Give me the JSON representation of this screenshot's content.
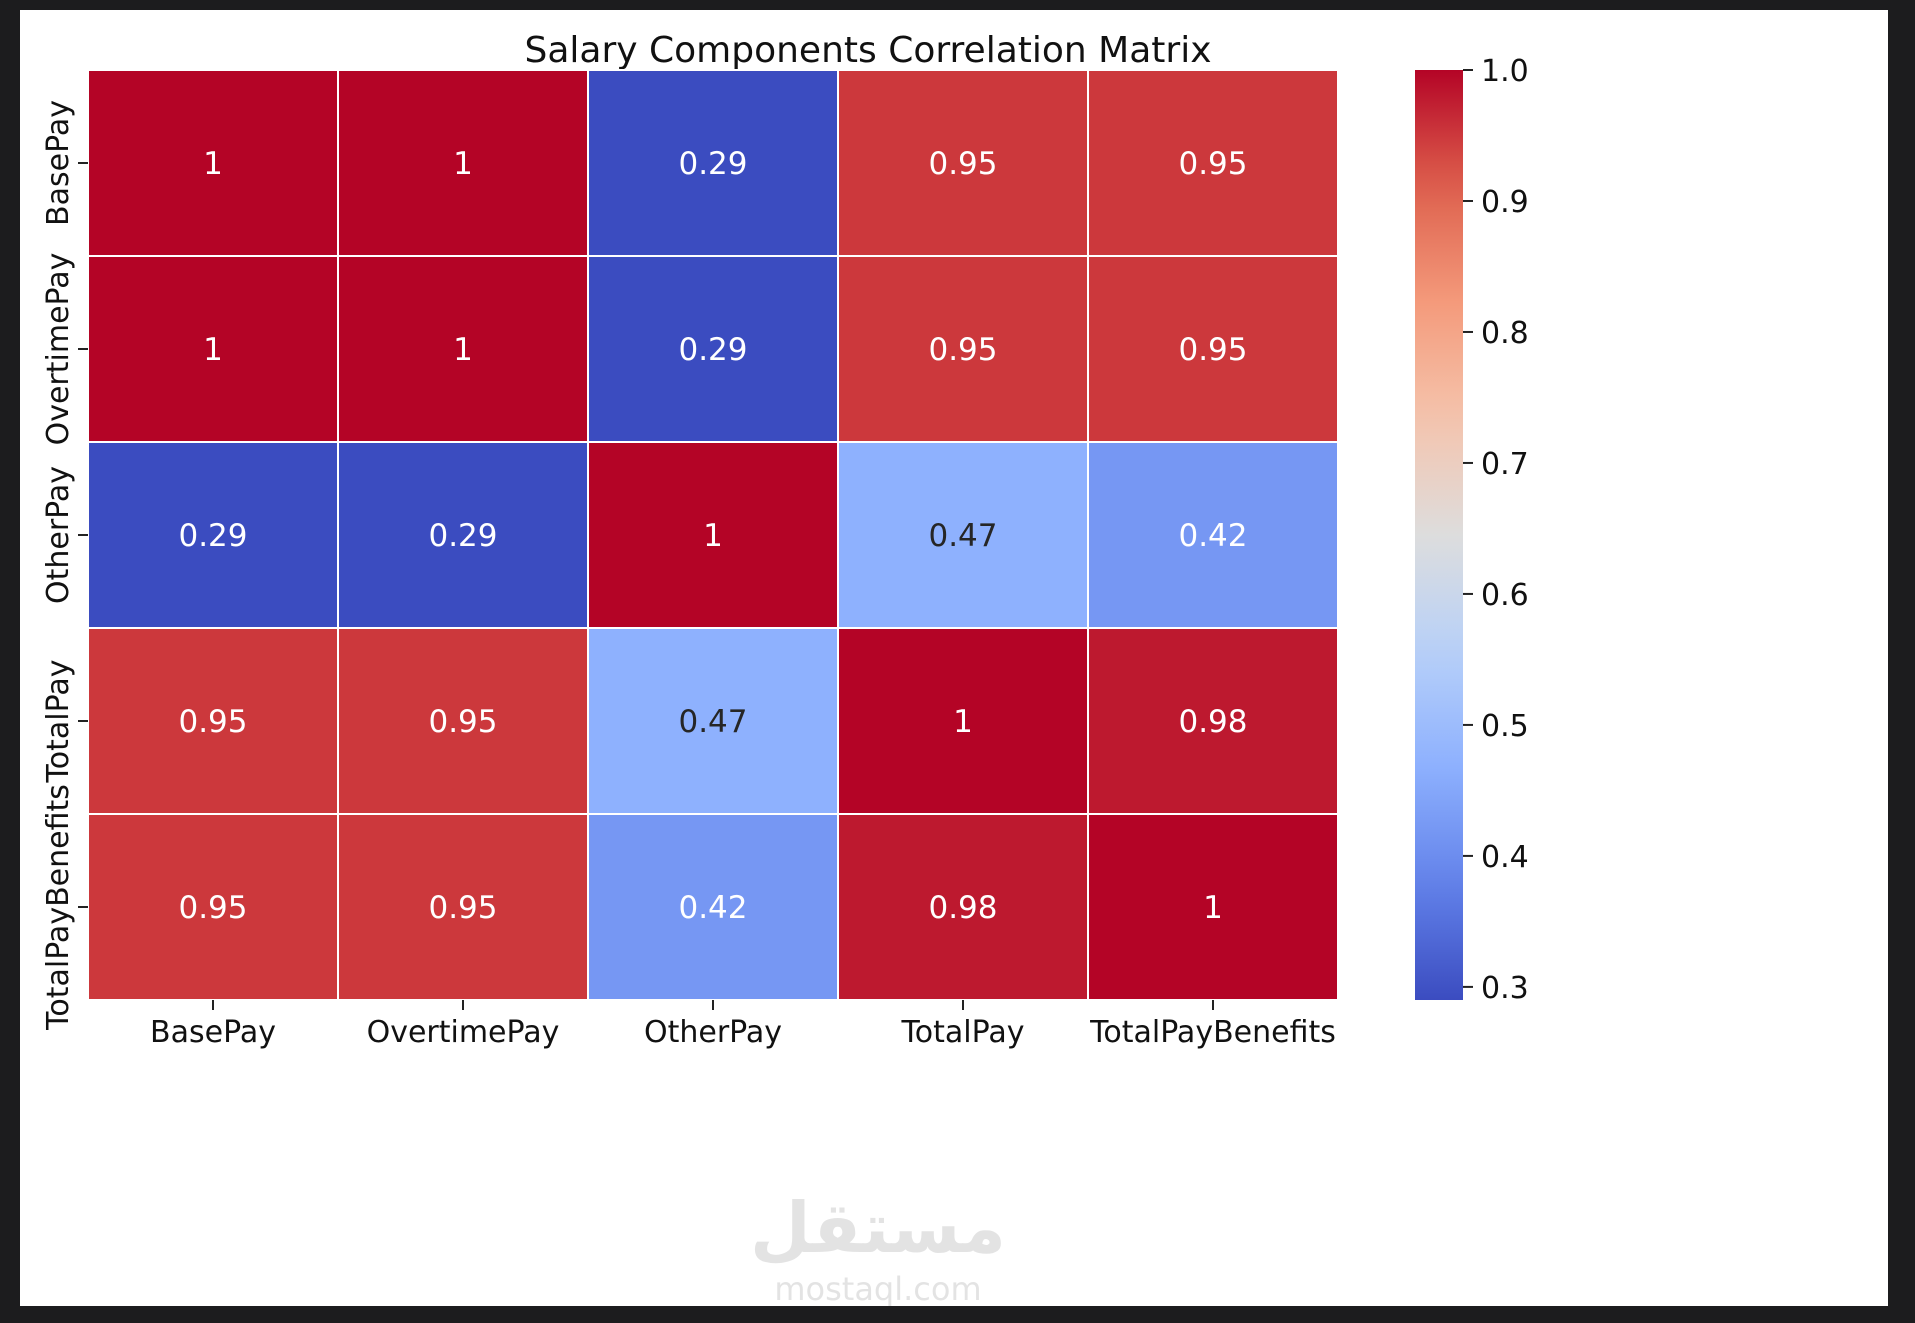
{
  "chart_data": {
    "type": "heatmap",
    "title": "Salary Components Correlation Matrix",
    "row_labels": [
      "BasePay",
      "OvertimePay",
      "OtherPay",
      "TotalPay",
      "TotalPayBenefits"
    ],
    "col_labels": [
      "BasePay",
      "OvertimePay",
      "OtherPay",
      "TotalPay",
      "TotalPayBenefits"
    ],
    "values": [
      [
        1,
        1,
        0.29,
        0.95,
        0.95
      ],
      [
        1,
        1,
        0.29,
        0.95,
        0.95
      ],
      [
        0.29,
        0.29,
        1,
        0.47,
        0.42
      ],
      [
        0.95,
        0.95,
        0.47,
        1,
        0.98
      ],
      [
        0.95,
        0.95,
        0.42,
        0.98,
        1
      ]
    ],
    "annotations": [
      [
        "1",
        "1",
        "0.29",
        "0.95",
        "0.95"
      ],
      [
        "1",
        "1",
        "0.29",
        "0.95",
        "0.95"
      ],
      [
        "0.29",
        "0.29",
        "1",
        "0.47",
        "0.42"
      ],
      [
        "0.95",
        "0.95",
        "0.47",
        "1",
        "0.98"
      ],
      [
        "0.95",
        "0.95",
        "0.42",
        "0.98",
        "1"
      ]
    ],
    "colormap": "coolwarm",
    "vmin": 0.29,
    "vmax": 1.0,
    "colorbar_ticks": [
      "0.3",
      "0.4",
      "0.5",
      "0.6",
      "0.7",
      "0.8",
      "0.9",
      "1.0"
    ],
    "colorbar_tick_values": [
      0.3,
      0.4,
      0.5,
      0.6,
      0.7,
      0.8,
      0.9,
      1.0
    ],
    "gridline_color": "#ffffff"
  },
  "watermark": {
    "arabic": "مستقل",
    "latin": "mostaql.com"
  }
}
